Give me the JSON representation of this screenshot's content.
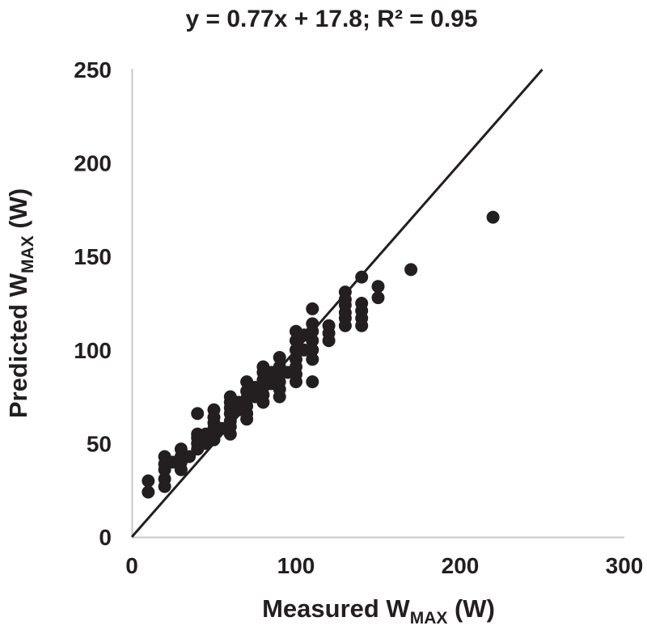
{
  "chart_data": {
    "type": "scatter",
    "title": "y = 0.77x + 17.8; R² = 0.95",
    "xlabel": {
      "main": "Measured W",
      "subscript": "MAX",
      "unit": " (W)"
    },
    "ylabel": {
      "main": "Predicted W",
      "subscript": "MAX",
      "unit": " (W)"
    },
    "xlim": [
      0,
      300
    ],
    "ylim": [
      0,
      250
    ],
    "xticks": [
      "0",
      "100",
      "200",
      "300"
    ],
    "yticks": [
      "0",
      "50",
      "100",
      "150",
      "200",
      "250"
    ],
    "grid": false,
    "legend": "none",
    "identity_line": {
      "x": [
        0,
        250
      ],
      "y": [
        0,
        250
      ]
    },
    "colors": {
      "axis": "#c8c8c8",
      "points": "#231f20",
      "line": "#231f20",
      "text": "#231f20"
    },
    "points": [
      [
        10,
        24
      ],
      [
        10,
        30
      ],
      [
        20,
        27
      ],
      [
        20,
        31
      ],
      [
        20,
        36
      ],
      [
        20,
        39
      ],
      [
        20,
        43
      ],
      [
        25,
        40
      ],
      [
        30,
        36
      ],
      [
        30,
        40
      ],
      [
        30,
        43
      ],
      [
        30,
        47
      ],
      [
        35,
        43
      ],
      [
        40,
        47
      ],
      [
        40,
        50
      ],
      [
        40,
        53
      ],
      [
        40,
        55
      ],
      [
        40,
        66
      ],
      [
        45,
        50
      ],
      [
        45,
        55
      ],
      [
        50,
        52
      ],
      [
        50,
        55
      ],
      [
        50,
        58
      ],
      [
        50,
        61
      ],
      [
        50,
        64
      ],
      [
        50,
        68
      ],
      [
        55,
        58
      ],
      [
        60,
        55
      ],
      [
        60,
        59
      ],
      [
        60,
        62
      ],
      [
        60,
        66
      ],
      [
        60,
        69
      ],
      [
        60,
        72
      ],
      [
        60,
        75
      ],
      [
        65,
        68
      ],
      [
        65,
        72
      ],
      [
        70,
        63
      ],
      [
        70,
        66
      ],
      [
        70,
        70
      ],
      [
        70,
        74
      ],
      [
        70,
        78
      ],
      [
        70,
        83
      ],
      [
        75,
        75
      ],
      [
        75,
        80
      ],
      [
        80,
        72
      ],
      [
        80,
        76
      ],
      [
        80,
        80
      ],
      [
        80,
        84
      ],
      [
        80,
        88
      ],
      [
        80,
        91
      ],
      [
        85,
        82
      ],
      [
        85,
        88
      ],
      [
        90,
        75
      ],
      [
        90,
        79
      ],
      [
        90,
        83
      ],
      [
        90,
        87
      ],
      [
        90,
        91
      ],
      [
        90,
        96
      ],
      [
        95,
        88
      ],
      [
        100,
        83
      ],
      [
        100,
        87
      ],
      [
        100,
        91
      ],
      [
        100,
        95
      ],
      [
        100,
        100
      ],
      [
        100,
        105
      ],
      [
        100,
        110
      ],
      [
        105,
        100
      ],
      [
        105,
        108
      ],
      [
        110,
        83
      ],
      [
        110,
        95
      ],
      [
        110,
        100
      ],
      [
        110,
        105
      ],
      [
        110,
        110
      ],
      [
        110,
        114
      ],
      [
        110,
        122
      ],
      [
        120,
        105
      ],
      [
        120,
        109
      ],
      [
        120,
        113
      ],
      [
        130,
        113
      ],
      [
        130,
        117
      ],
      [
        130,
        120
      ],
      [
        130,
        124
      ],
      [
        130,
        127
      ],
      [
        130,
        131
      ],
      [
        140,
        113
      ],
      [
        140,
        117
      ],
      [
        140,
        121
      ],
      [
        140,
        125
      ],
      [
        140,
        139
      ],
      [
        150,
        128
      ],
      [
        150,
        134
      ],
      [
        170,
        143
      ],
      [
        220,
        171
      ]
    ]
  }
}
